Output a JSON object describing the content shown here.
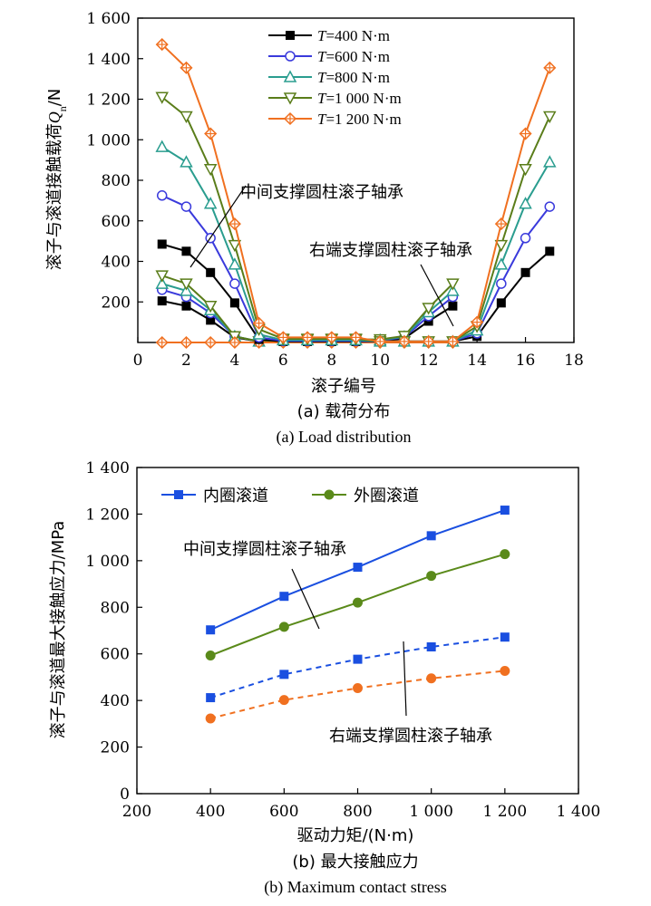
{
  "chart_data": [
    {
      "type": "line",
      "x": [
        1,
        2,
        3,
        4,
        5,
        6,
        7,
        8,
        9,
        10,
        11,
        12,
        13,
        14,
        15,
        16,
        17
      ],
      "xlim": [
        0,
        18
      ],
      "xticks": [
        0,
        2,
        4,
        6,
        8,
        10,
        12,
        14,
        16,
        18
      ],
      "xtick_labels": [
        "0",
        "2",
        "4",
        "6",
        "8",
        "10",
        "12",
        "14",
        "16",
        "18"
      ],
      "ylim": [
        0,
        1600
      ],
      "yticks": [
        200,
        400,
        600,
        800,
        1000,
        1200,
        1400,
        1600
      ],
      "ytick_labels": [
        "200",
        "400",
        "600",
        "800",
        "1 000",
        "1 200",
        "1 400",
        "1 600"
      ],
      "xlabel": "滚子编号",
      "ylabel": "滚子与滚道接触载荷Qn/N",
      "caption_cn": "(a) 载荷分布",
      "caption_en": "(a) Load distribution",
      "legend": {
        "placement": "top-center"
      },
      "series": [
        {
          "name": "T=400 N·m",
          "legend_var": "T",
          "legend_rest": "=400 N·m",
          "color": "#000000",
          "marker": "square-filled",
          "values": [
            485,
            450,
            345,
            195,
            15,
            5,
            5,
            5,
            5,
            5,
            5,
            5,
            5,
            30,
            195,
            345,
            450
          ]
        },
        {
          "name": "T=600 N·m",
          "legend_var": "T",
          "legend_rest": "=600 N·m",
          "color": "#3a3adc",
          "marker": "circle-open",
          "values": [
            725,
            670,
            515,
            290,
            25,
            8,
            8,
            8,
            8,
            5,
            5,
            5,
            5,
            45,
            290,
            515,
            670
          ]
        },
        {
          "name": "T=800 N·m",
          "legend_var": "T",
          "legend_rest": "=800 N·m",
          "color": "#2a9d8f",
          "marker": "triangle-up-open",
          "values": [
            965,
            890,
            685,
            385,
            40,
            12,
            12,
            12,
            12,
            5,
            5,
            5,
            5,
            60,
            385,
            685,
            890
          ]
        },
        {
          "name": "T=1 000 N·m",
          "legend_var": "T",
          "legend_rest": "=1 000 N·m",
          "color": "#5a7d1a",
          "marker": "triangle-down-open",
          "values": [
            1210,
            1115,
            855,
            480,
            65,
            18,
            18,
            18,
            18,
            5,
            5,
            5,
            5,
            80,
            480,
            855,
            1115
          ]
        },
        {
          "name": "T=1 200 N·m",
          "legend_var": "T",
          "legend_rest": "=1 200 N·m",
          "color": "#f07020",
          "marker": "diamond-cross",
          "values": [
            1470,
            1355,
            1030,
            585,
            95,
            25,
            25,
            25,
            25,
            5,
            5,
            5,
            5,
            100,
            585,
            1030,
            1355
          ]
        }
      ],
      "series_right_end": [
        {
          "name": "T=400 N·m",
          "x": [
            1,
            2,
            3,
            4,
            5,
            6,
            7,
            8,
            9,
            10,
            11,
            12,
            13
          ],
          "values": [
            205,
            180,
            110,
            25,
            5,
            5,
            5,
            5,
            5,
            5,
            20,
            105,
            180
          ]
        },
        {
          "name": "T=600 N·m",
          "x": [
            1,
            2,
            3,
            4,
            5,
            6,
            7,
            8,
            9,
            10,
            11,
            12,
            13
          ],
          "values": [
            260,
            225,
            145,
            30,
            5,
            10,
            10,
            10,
            10,
            10,
            25,
            130,
            225
          ]
        },
        {
          "name": "T=800 N·m",
          "x": [
            1,
            2,
            3,
            4,
            5,
            6,
            7,
            8,
            9,
            10,
            11,
            12,
            13
          ],
          "values": [
            290,
            255,
            160,
            30,
            5,
            12,
            12,
            12,
            12,
            12,
            28,
            150,
            255
          ]
        },
        {
          "name": "T=1 000 N·m",
          "x": [
            1,
            2,
            3,
            4,
            5,
            6,
            7,
            8,
            9,
            10,
            11,
            12,
            13
          ],
          "values": [
            330,
            290,
            180,
            30,
            5,
            15,
            15,
            15,
            15,
            15,
            32,
            170,
            290
          ]
        },
        {
          "name": "T=1 200 N·m",
          "x": [
            1,
            2,
            3,
            4,
            5,
            6,
            7,
            8,
            9,
            10,
            11,
            12,
            13
          ],
          "values": [
            0,
            0,
            0,
            0,
            0,
            0,
            0,
            0,
            0,
            0,
            0,
            0,
            0
          ]
        }
      ],
      "annotations": [
        "中间支撑圆柱滚子轴承",
        "右端支撑圆柱滚子轴承"
      ]
    },
    {
      "type": "line",
      "x": [
        400,
        600,
        800,
        1000,
        1200
      ],
      "xlim": [
        200,
        1400
      ],
      "xticks": [
        200,
        400,
        600,
        800,
        1000,
        1200,
        1400
      ],
      "xtick_labels": [
        "200",
        "400",
        "600",
        "800",
        "1 000",
        "1 200",
        "1 400"
      ],
      "ylim": [
        0,
        1400
      ],
      "yticks": [
        0,
        200,
        400,
        600,
        800,
        1000,
        1200,
        1400
      ],
      "ytick_labels": [
        "0",
        "200",
        "400",
        "600",
        "800",
        "1 000",
        "1 200",
        "1 400"
      ],
      "xlabel": "驱动力矩/(N·m)",
      "ylabel": "滚子与滚道最大接触应力/MPa",
      "caption_cn": "(b) 最大接触应力",
      "caption_en": "(b) Maximum contact stress",
      "legend": {
        "placement": "top-left"
      },
      "series": [
        {
          "name": "内圈滚道",
          "group": "中间支撑圆柱滚子轴承",
          "color": "#1a4fe0",
          "marker": "square",
          "dash": false,
          "values": [
            703,
            847,
            972,
            1107,
            1217
          ]
        },
        {
          "name": "外圈滚道",
          "group": "中间支撑圆柱滚子轴承",
          "color": "#5a8a1a",
          "marker": "circle",
          "dash": false,
          "values": [
            593,
            716,
            820,
            935,
            1028
          ]
        },
        {
          "name": "内圈滚道",
          "group": "右端支撑圆柱滚子轴承",
          "color": "#1a4fe0",
          "marker": "square",
          "dash": true,
          "values": [
            412,
            512,
            577,
            630,
            672
          ]
        },
        {
          "name": "外圈滚道",
          "group": "右端支撑圆柱滚子轴承",
          "color": "#f07020",
          "marker": "circle",
          "dash": true,
          "values": [
            323,
            402,
            453,
            495,
            527
          ]
        }
      ],
      "annotations": [
        "中间支撑圆柱滚子轴承",
        "右端支撑圆柱滚子轴承"
      ]
    }
  ]
}
